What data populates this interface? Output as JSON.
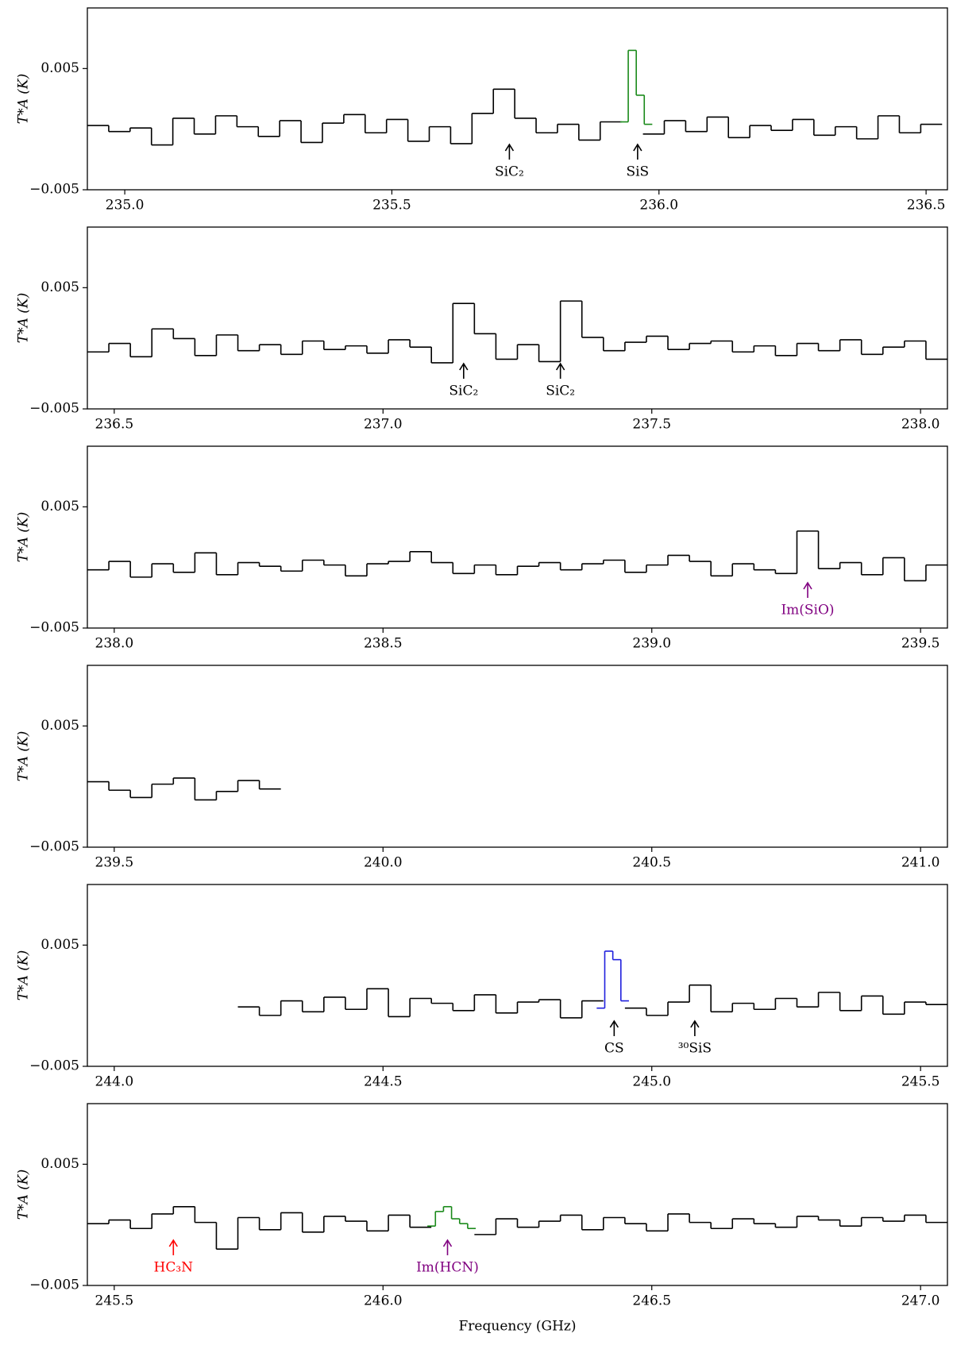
{
  "chart_data": [
    {
      "type": "line",
      "y_label": "T*A (K)",
      "xlim": [
        234.93,
        236.54
      ],
      "ylim": [
        -0.005,
        0.01
      ],
      "xticks": [
        {
          "value": 235,
          "label": "235.0"
        },
        235.5,
        {
          "value": 236,
          "label": "236.0"
        },
        236.5
      ],
      "yticks": [
        0.005,
        {
          "value": -0.005,
          "label": "−0.005"
        }
      ],
      "series": [
        {
          "color": "#000000",
          "x": [
            234.95,
            234.99,
            235.03,
            235.07,
            235.11,
            235.15,
            235.19,
            235.23,
            235.27,
            235.31,
            235.35,
            235.39,
            235.43,
            235.47,
            235.51,
            235.55,
            235.59,
            235.63,
            235.67,
            235.71,
            235.75,
            235.79,
            235.83,
            235.87,
            235.91,
            235.95,
            235.99,
            236.03,
            236.07,
            236.11,
            236.15,
            236.19,
            236.23,
            236.27,
            236.31,
            236.35,
            236.39,
            236.43,
            236.47,
            236.51
          ],
          "values": [
            0.0003,
            -0.0002,
            0.0001,
            -0.0013,
            0.0009,
            -0.0004,
            0.0011,
            0.0002,
            -0.0006,
            0.0007,
            -0.0011,
            0.0005,
            0.0012,
            -0.0003,
            0.0008,
            -0.001,
            0.0002,
            -0.0012,
            0.0013,
            0.0033,
            0.0009,
            -0.0003,
            0.0004,
            -0.0009,
            0.0006,
            null,
            -0.0004,
            0.0007,
            -0.0002,
            0.001,
            -0.0007,
            0.0003,
            -0.0001,
            0.0008,
            -0.0005,
            0.0002,
            -0.0008,
            0.0011,
            -0.0003,
            0.0004
          ]
        },
        {
          "color": "#1a8a1a",
          "x": [
            235.935,
            235.95,
            235.965,
            235.98
          ],
          "values": [
            0.0006,
            0.0065,
            0.0028,
            0.0004
          ]
        }
      ],
      "annotations": [
        {
          "text": "SiC₂",
          "x": 235.72,
          "color": "#000000"
        },
        {
          "text": "SiS",
          "x": 235.96,
          "color": "#000000"
        }
      ]
    },
    {
      "type": "line",
      "y_label": "T*A (K)",
      "xlim": [
        236.45,
        238.05
      ],
      "ylim": [
        -0.005,
        0.01
      ],
      "xticks": [
        236.5,
        {
          "value": 237,
          "label": "237.0"
        },
        237.5,
        {
          "value": 238,
          "label": "238.0"
        }
      ],
      "yticks": [
        0.005,
        {
          "value": -0.005,
          "label": "−0.005"
        }
      ],
      "series": [
        {
          "color": "#000000",
          "x": [
            236.47,
            236.51,
            236.55,
            236.59,
            236.63,
            236.67,
            236.71,
            236.75,
            236.79,
            236.83,
            236.87,
            236.91,
            236.95,
            236.99,
            237.03,
            237.07,
            237.11,
            237.15,
            237.19,
            237.23,
            237.27,
            237.31,
            237.35,
            237.39,
            237.43,
            237.47,
            237.51,
            237.55,
            237.59,
            237.63,
            237.67,
            237.71,
            237.75,
            237.79,
            237.83,
            237.87,
            237.91,
            237.95,
            237.99,
            238.03
          ],
          "values": [
            -0.0003,
            0.0004,
            -0.0007,
            0.0016,
            0.0008,
            -0.0006,
            0.0011,
            -0.0002,
            0.0003,
            -0.0005,
            0.0006,
            -0.0001,
            0.0002,
            -0.0004,
            0.0007,
            0.0001,
            -0.0012,
            0.0037,
            0.0012,
            -0.0009,
            0.0003,
            -0.0011,
            0.0039,
            0.0009,
            -0.0002,
            0.0005,
            0.001,
            -0.0001,
            0.0004,
            0.0006,
            -0.0003,
            0.0002,
            -0.0006,
            0.0004,
            -0.0002,
            0.0007,
            -0.0005,
            0.0001,
            0.0006,
            -0.0009
          ]
        }
      ],
      "annotations": [
        {
          "text": "SiC₂",
          "x": 237.15,
          "color": "#000000"
        },
        {
          "text": "SiC₂",
          "x": 237.33,
          "color": "#000000"
        }
      ]
    },
    {
      "type": "line",
      "y_label": "T*A (K)",
      "xlim": [
        237.95,
        239.55
      ],
      "ylim": [
        -0.005,
        0.01
      ],
      "xticks": [
        {
          "value": 238,
          "label": "238.0"
        },
        238.5,
        {
          "value": 239,
          "label": "239.0"
        },
        239.5
      ],
      "yticks": [
        0.005,
        {
          "value": -0.005,
          "label": "−0.005"
        }
      ],
      "series": [
        {
          "color": "#000000",
          "x": [
            237.97,
            238.01,
            238.05,
            238.09,
            238.13,
            238.17,
            238.21,
            238.25,
            238.29,
            238.33,
            238.37,
            238.41,
            238.45,
            238.49,
            238.53,
            238.57,
            238.61,
            238.65,
            238.69,
            238.73,
            238.77,
            238.81,
            238.85,
            238.89,
            238.93,
            238.97,
            239.01,
            239.05,
            239.09,
            239.13,
            239.17,
            239.21,
            239.25,
            239.29,
            239.33,
            239.37,
            239.41,
            239.45,
            239.49,
            239.53
          ],
          "values": [
            -0.0002,
            0.0005,
            -0.0008,
            0.0003,
            -0.0004,
            0.0012,
            -0.0006,
            0.0004,
            0.0001,
            -0.0003,
            0.0006,
            0.0002,
            -0.0007,
            0.0003,
            0.0005,
            0.0013,
            0.0004,
            -0.0005,
            0.0002,
            -0.0006,
            0.0001,
            0.0004,
            -0.0002,
            0.0003,
            0.0006,
            -0.0004,
            0.0002,
            0.001,
            0.0005,
            -0.0007,
            0.0003,
            -0.0002,
            -0.0005,
            0.003,
            -0.0001,
            0.0004,
            -0.0006,
            0.0008,
            -0.0011,
            0.0002
          ]
        }
      ],
      "annotations": [
        {
          "text": "Im(SiO)",
          "x": 239.29,
          "color": "#800080"
        }
      ]
    },
    {
      "type": "line",
      "y_label": "T*A (K)",
      "xlim": [
        239.45,
        241.05
      ],
      "ylim": [
        -0.005,
        0.01
      ],
      "xticks": [
        239.5,
        {
          "value": 240,
          "label": "240.0"
        },
        240.5,
        {
          "value": 241,
          "label": "241.0"
        }
      ],
      "yticks": [
        0.005,
        {
          "value": -0.005,
          "label": "−0.005"
        }
      ],
      "series": [
        {
          "color": "#000000",
          "x": [
            239.47,
            239.51,
            239.55,
            239.59,
            239.63,
            239.67,
            239.71,
            239.75,
            239.79
          ],
          "values": [
            0.0004,
            -0.0003,
            -0.0009,
            0.0002,
            0.0007,
            -0.0011,
            -0.0004,
            0.0005,
            -0.0002
          ]
        }
      ],
      "annotations": []
    },
    {
      "type": "line",
      "y_label": "T*A (K)",
      "xlim": [
        243.95,
        245.55
      ],
      "ylim": [
        -0.005,
        0.01
      ],
      "xticks": [
        {
          "value": 244,
          "label": "244.0"
        },
        244.5,
        {
          "value": 245,
          "label": "245.0"
        },
        245.5
      ],
      "yticks": [
        0.005,
        {
          "value": -0.005,
          "label": "−0.005"
        }
      ],
      "series": [
        {
          "color": "#000000",
          "x": [
            244.25,
            244.29,
            244.33,
            244.37,
            244.41,
            244.45,
            244.49,
            244.53,
            244.57,
            244.61,
            244.65,
            244.69,
            244.73,
            244.77,
            244.81,
            244.85,
            244.89,
            244.93,
            244.97,
            245.01,
            245.05,
            245.09,
            245.13,
            245.17,
            245.21,
            245.25,
            245.29,
            245.33,
            245.37,
            245.41,
            245.45,
            245.49,
            245.53
          ],
          "values": [
            -0.0001,
            -0.0008,
            0.0004,
            -0.0005,
            0.0007,
            -0.0003,
            0.0014,
            -0.0009,
            0.0006,
            0.0002,
            -0.0004,
            0.0009,
            -0.0006,
            0.0003,
            0.0005,
            -0.001,
            0.0004,
            null,
            -0.0002,
            -0.0008,
            0.0003,
            0.0017,
            -0.0005,
            0.0002,
            -0.0003,
            0.0006,
            -0.0001,
            0.0011,
            -0.0004,
            0.0008,
            -0.0007,
            0.0003,
            0.0001
          ]
        },
        {
          "color": "#1f1fdd",
          "x": [
            244.905,
            244.92,
            244.935,
            244.95
          ],
          "values": [
            -0.0002,
            0.0045,
            0.0038,
            0.0004
          ]
        }
      ],
      "annotations": [
        {
          "text": "CS",
          "x": 244.93,
          "color": "#000000"
        },
        {
          "text": "³⁰SiS",
          "x": 245.08,
          "color": "#000000"
        }
      ]
    },
    {
      "type": "line",
      "y_label": "T*A (K)",
      "x_label": "Frequency (GHz)",
      "xlim": [
        245.45,
        247.05
      ],
      "ylim": [
        -0.005,
        0.01
      ],
      "xticks": [
        245.5,
        {
          "value": 246,
          "label": "246.0"
        },
        246.5,
        {
          "value": 247,
          "label": "247.0"
        }
      ],
      "yticks": [
        0.005,
        {
          "value": -0.005,
          "label": "−0.005"
        }
      ],
      "series": [
        {
          "color": "#000000",
          "x": [
            245.47,
            245.51,
            245.55,
            245.59,
            245.63,
            245.67,
            245.71,
            245.75,
            245.79,
            245.83,
            245.87,
            245.91,
            245.95,
            245.99,
            246.03,
            246.07,
            246.11,
            246.15,
            246.19,
            246.23,
            246.27,
            246.31,
            246.35,
            246.39,
            246.43,
            246.47,
            246.51,
            246.55,
            246.59,
            246.63,
            246.67,
            246.71,
            246.75,
            246.79,
            246.83,
            246.87,
            246.91,
            246.95,
            246.99,
            247.03
          ],
          "values": [
            0.0001,
            0.0004,
            -0.0003,
            0.0009,
            0.0015,
            0.0002,
            -0.002,
            0.0006,
            -0.0004,
            0.001,
            -0.0006,
            0.0007,
            0.0003,
            -0.0005,
            0.0008,
            -0.0002,
            null,
            null,
            -0.0008,
            0.0005,
            -0.0002,
            0.0003,
            0.0008,
            -0.0004,
            0.0006,
            0.0001,
            -0.0005,
            0.0009,
            0.0002,
            -0.0003,
            0.0005,
            0.0001,
            -0.0002,
            0.0007,
            0.0004,
            -0.0001,
            0.0006,
            0.0003,
            0.0008,
            0.0002
          ]
        },
        {
          "color": "#1a8a1a",
          "x": [
            246.09,
            246.105,
            246.12,
            246.135,
            246.15,
            246.165
          ],
          "values": [
            -0.0001,
            0.0011,
            0.0015,
            0.0005,
            0.0001,
            -0.0003
          ]
        }
      ],
      "annotations": [
        {
          "text": "HC₃N",
          "x": 245.61,
          "color": "#ff0000"
        },
        {
          "text": "Im(HCN)",
          "x": 246.12,
          "color": "#800080"
        }
      ]
    }
  ]
}
